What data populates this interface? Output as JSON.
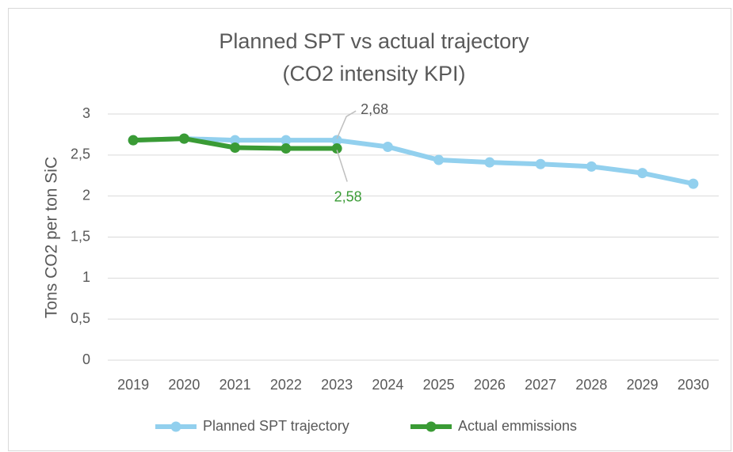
{
  "chart_data": {
    "type": "line",
    "title": "Planned SPT vs actual trajectory",
    "subtitle": "(CO2 intensity KPI)",
    "y_label": "Tons CO2 per ton SiC",
    "categories": [
      "2019",
      "2020",
      "2021",
      "2022",
      "2023",
      "2024",
      "2025",
      "2026",
      "2027",
      "2028",
      "2029",
      "2030"
    ],
    "series": [
      {
        "name": "Planned SPT trajectory",
        "color": "#92d0ee",
        "values": [
          2.68,
          2.7,
          2.68,
          2.68,
          2.68,
          2.6,
          2.44,
          2.41,
          2.39,
          2.36,
          2.28,
          2.15
        ],
        "value_labels": [
          null,
          null,
          null,
          null,
          "2,68",
          null,
          null,
          null,
          null,
          null,
          null,
          null
        ]
      },
      {
        "name": "Actual emmissions",
        "color": "#3a9b35",
        "values": [
          2.68,
          2.7,
          2.59,
          2.58,
          2.58,
          null,
          null,
          null,
          null,
          null,
          null,
          null
        ],
        "value_labels": [
          null,
          null,
          null,
          null,
          "2,58",
          null,
          null,
          null,
          null,
          null,
          null,
          null
        ]
      }
    ],
    "ylim": [
      0,
      3
    ],
    "yticks": [
      0,
      {
        "value": 0.5,
        "label": "0,5"
      },
      1,
      {
        "value": 1.5,
        "label": "1,5"
      },
      2,
      {
        "value": 2.5,
        "label": "2,5"
      },
      3
    ],
    "grid": true,
    "legend": "bottom"
  }
}
